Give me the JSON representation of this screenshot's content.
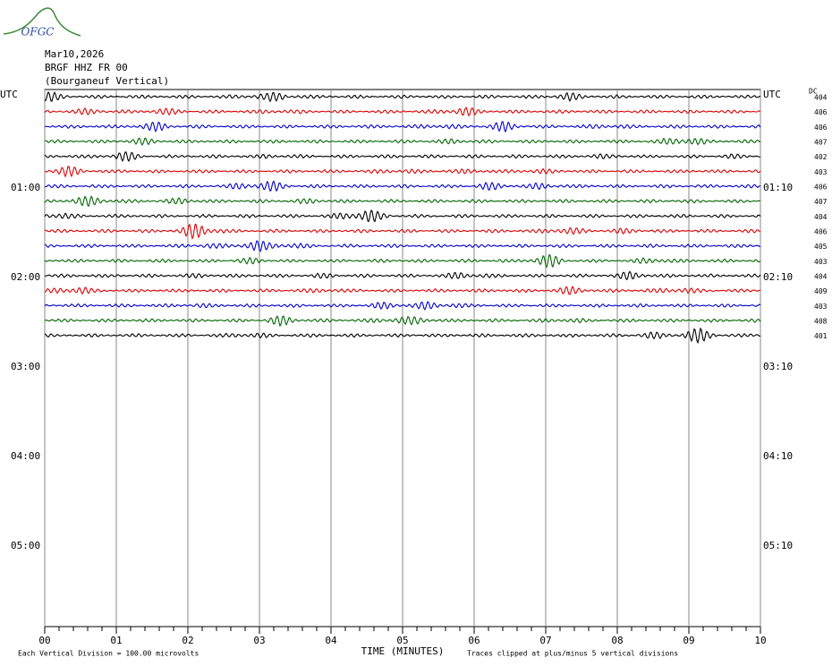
{
  "logo": "OFGC",
  "header": {
    "date": "Mar10,2026",
    "station": "BRGF HHZ FR 00",
    "location": "(Bourganeuf Vertical)"
  },
  "left_labels": [
    "UTC",
    "01:00",
    "02:00",
    "03:00",
    "04:00",
    "05:00"
  ],
  "right_labels": [
    "UTC",
    "01:10",
    "02:10",
    "03:10",
    "04:10",
    "05:10"
  ],
  "dc_label": "DC",
  "dc_values": [
    404,
    406,
    406,
    407,
    402,
    403,
    406,
    407,
    404,
    406,
    405,
    403,
    404,
    409,
    403,
    408,
    401
  ],
  "trace_colors": [
    "#000000",
    "#dd0000",
    "#0000cc",
    "#006600"
  ],
  "x_axis": {
    "title": "TIME (MINUTES)",
    "lim": [
      0,
      10
    ],
    "ticks": [
      {
        "value": 0,
        "label": "00"
      },
      {
        "value": 1,
        "label": "01"
      },
      {
        "value": 2,
        "label": "02"
      },
      {
        "value": 3,
        "label": "03"
      },
      {
        "value": 4,
        "label": "04"
      },
      {
        "value": 5,
        "label": "05"
      },
      {
        "value": 6,
        "label": "06"
      },
      {
        "value": 7,
        "label": "07"
      },
      {
        "value": 8,
        "label": "08"
      },
      {
        "value": 9,
        "label": "09"
      },
      {
        "value": 10,
        "label": "10"
      }
    ]
  },
  "footer": {
    "left": "Each Vertical Division =  100.00 microvolts",
    "right": "Traces clipped at plus/minus 5 vertical divisions"
  }
}
